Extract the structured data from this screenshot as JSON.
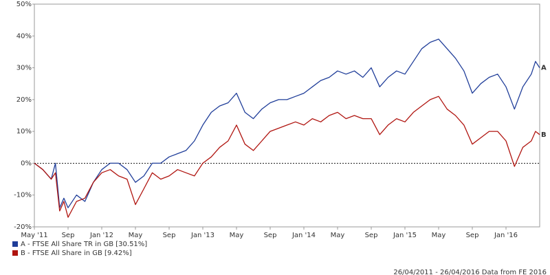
{
  "chart_data": {
    "type": "line",
    "xlim": [
      0,
      60
    ],
    "xticks": [
      {
        "value": 0,
        "label": "May '11"
      },
      {
        "value": 4,
        "label": "Sep"
      },
      {
        "value": 8,
        "label": "Jan '12"
      },
      {
        "value": 12,
        "label": "May"
      },
      {
        "value": 16,
        "label": "Sep"
      },
      {
        "value": 20,
        "label": "Jan '13"
      },
      {
        "value": 24,
        "label": "May"
      },
      {
        "value": 28,
        "label": "Sep"
      },
      {
        "value": 32,
        "label": "Jan '14"
      },
      {
        "value": 36,
        "label": "May"
      },
      {
        "value": 40,
        "label": "Sep"
      },
      {
        "value": 44,
        "label": "Jan '15"
      },
      {
        "value": 48,
        "label": "May"
      },
      {
        "value": 52,
        "label": "Sep"
      },
      {
        "value": 56,
        "label": "Jan '16"
      }
    ],
    "ylim": [
      -20,
      50
    ],
    "yticks": [
      {
        "value": -20,
        "label": "-20%"
      },
      {
        "value": -10,
        "label": "-10%"
      },
      {
        "value": 0,
        "label": "0%"
      },
      {
        "value": 10,
        "label": "10%"
      },
      {
        "value": 20,
        "label": "20%"
      },
      {
        "value": 30,
        "label": "30%"
      },
      {
        "value": 40,
        "label": "40%"
      },
      {
        "value": 50,
        "label": "50%"
      }
    ],
    "x": [
      0,
      1,
      2,
      2.5,
      3,
      3.5,
      4,
      5,
      6,
      7,
      8,
      9,
      10,
      11,
      12,
      13,
      14,
      15,
      16,
      17,
      18,
      19,
      20,
      21,
      22,
      23,
      24,
      25,
      26,
      27,
      28,
      29,
      30,
      31,
      32,
      33,
      34,
      35,
      36,
      37,
      38,
      39,
      40,
      41,
      42,
      43,
      44,
      45,
      46,
      47,
      48,
      49,
      50,
      51,
      52,
      53,
      54,
      55,
      56,
      57,
      58,
      59,
      59.5,
      60
    ],
    "series": [
      {
        "name": "A - FTSE All Share TR in GB [30.51%]",
        "label": "A",
        "color": "#1f3d99",
        "values": [
          0,
          -2,
          -5,
          0,
          -14,
          -11,
          -14,
          -10,
          -12,
          -6,
          -2,
          0,
          0,
          -2,
          -6,
          -4,
          0,
          0,
          2,
          3,
          4,
          7,
          12,
          16,
          18,
          19,
          22,
          16,
          14,
          17,
          19,
          20,
          20,
          21,
          22,
          24,
          26,
          27,
          29,
          28,
          29,
          27,
          30,
          24,
          27,
          29,
          28,
          32,
          36,
          38,
          39,
          36,
          33,
          29,
          22,
          25,
          27,
          28,
          24,
          17,
          24,
          28,
          32,
          30
        ]
      },
      {
        "name": "B - FTSE All Share in GB [9.42%]",
        "label": "B",
        "color": "#b0140f",
        "values": [
          0,
          -2,
          -5,
          -3,
          -15,
          -12,
          -17,
          -12,
          -11,
          -6,
          -3,
          -2,
          -4,
          -5,
          -13,
          -8,
          -3,
          -5,
          -4,
          -2,
          -3,
          -4,
          0,
          2,
          5,
          7,
          12,
          6,
          4,
          7,
          10,
          11,
          12,
          13,
          12,
          14,
          13,
          15,
          16,
          14,
          15,
          14,
          14,
          9,
          12,
          14,
          13,
          16,
          18,
          20,
          21,
          17,
          15,
          12,
          6,
          8,
          10,
          10,
          7,
          -1,
          5,
          7,
          10,
          9
        ]
      }
    ],
    "footnote": "26/04/2011 - 26/04/2016 Data from FE 2016"
  }
}
